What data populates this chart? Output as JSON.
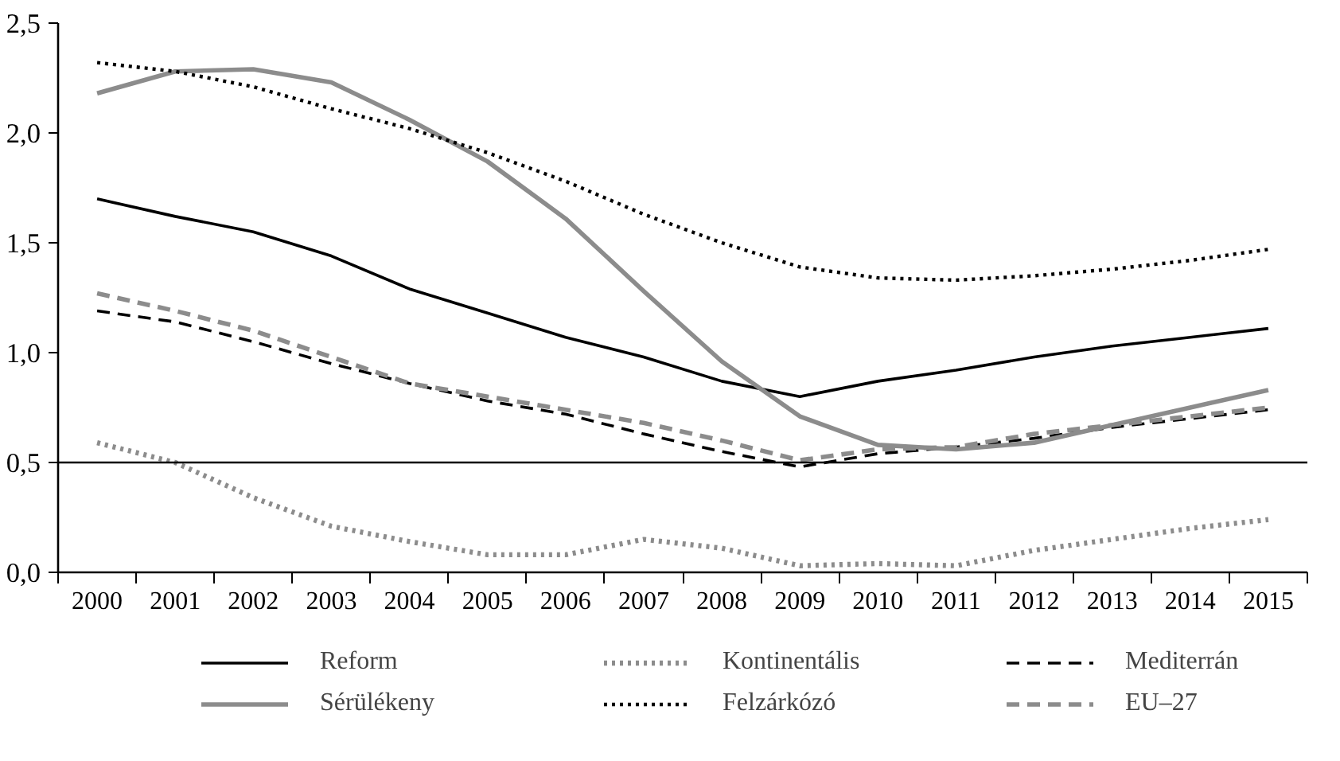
{
  "chart_data": {
    "type": "line",
    "categories": [
      "2000",
      "2001",
      "2002",
      "2003",
      "2004",
      "2005",
      "2006",
      "2007",
      "2008",
      "2009",
      "2010",
      "2011",
      "2012",
      "2013",
      "2014",
      "2015"
    ],
    "series": [
      {
        "name": "Reform",
        "color": "#000000",
        "line_style": "solid",
        "values": [
          1.7,
          1.62,
          1.55,
          1.44,
          1.29,
          1.18,
          1.07,
          0.98,
          0.87,
          0.8,
          0.87,
          0.92,
          0.98,
          1.03,
          1.07,
          1.11
        ]
      },
      {
        "name": "Kontinentális",
        "color": "#8c8c8c",
        "line_style": "dotted",
        "values": [
          0.59,
          0.5,
          0.34,
          0.21,
          0.14,
          0.08,
          0.08,
          0.15,
          0.11,
          0.03,
          0.04,
          0.03,
          0.1,
          0.15,
          0.2,
          0.24
        ]
      },
      {
        "name": "Mediterrán",
        "color": "#000000",
        "line_style": "dashed",
        "values": [
          1.19,
          1.14,
          1.05,
          0.95,
          0.86,
          0.78,
          0.72,
          0.63,
          0.55,
          0.48,
          0.54,
          0.57,
          0.61,
          0.66,
          0.7,
          0.74
        ]
      },
      {
        "name": "Sérülékeny",
        "color": "#8c8c8c",
        "line_style": "solid",
        "values": [
          2.18,
          2.28,
          2.29,
          2.23,
          2.06,
          1.87,
          1.61,
          1.28,
          0.96,
          0.71,
          0.58,
          0.56,
          0.59,
          0.67,
          0.75,
          0.83
        ]
      },
      {
        "name": "Felzárkózó",
        "color": "#000000",
        "line_style": "dotted",
        "values": [
          2.32,
          2.28,
          2.21,
          2.11,
          2.02,
          1.91,
          1.78,
          1.63,
          1.5,
          1.39,
          1.34,
          1.33,
          1.35,
          1.38,
          1.42,
          1.47
        ]
      },
      {
        "name": "EU–27",
        "color": "#8c8c8c",
        "line_style": "dashed",
        "values": [
          1.27,
          1.19,
          1.1,
          0.98,
          0.86,
          0.8,
          0.74,
          0.68,
          0.6,
          0.51,
          0.56,
          0.57,
          0.63,
          0.67,
          0.71,
          0.75
        ]
      }
    ],
    "ylim": [
      0,
      2.5
    ],
    "yticks": [
      {
        "value": 0,
        "label": "0,0"
      },
      {
        "value": 0.5,
        "label": "0,5"
      },
      {
        "value": 1,
        "label": "1,0"
      },
      {
        "value": 1.5,
        "label": "1,5"
      },
      {
        "value": 2,
        "label": "2,0"
      },
      {
        "value": 2.5,
        "label": "2,5"
      }
    ],
    "ref_lines": [
      {
        "axis": "y",
        "value": 0.5,
        "label": null,
        "color": "#000000"
      }
    ],
    "legend": "bottom"
  }
}
